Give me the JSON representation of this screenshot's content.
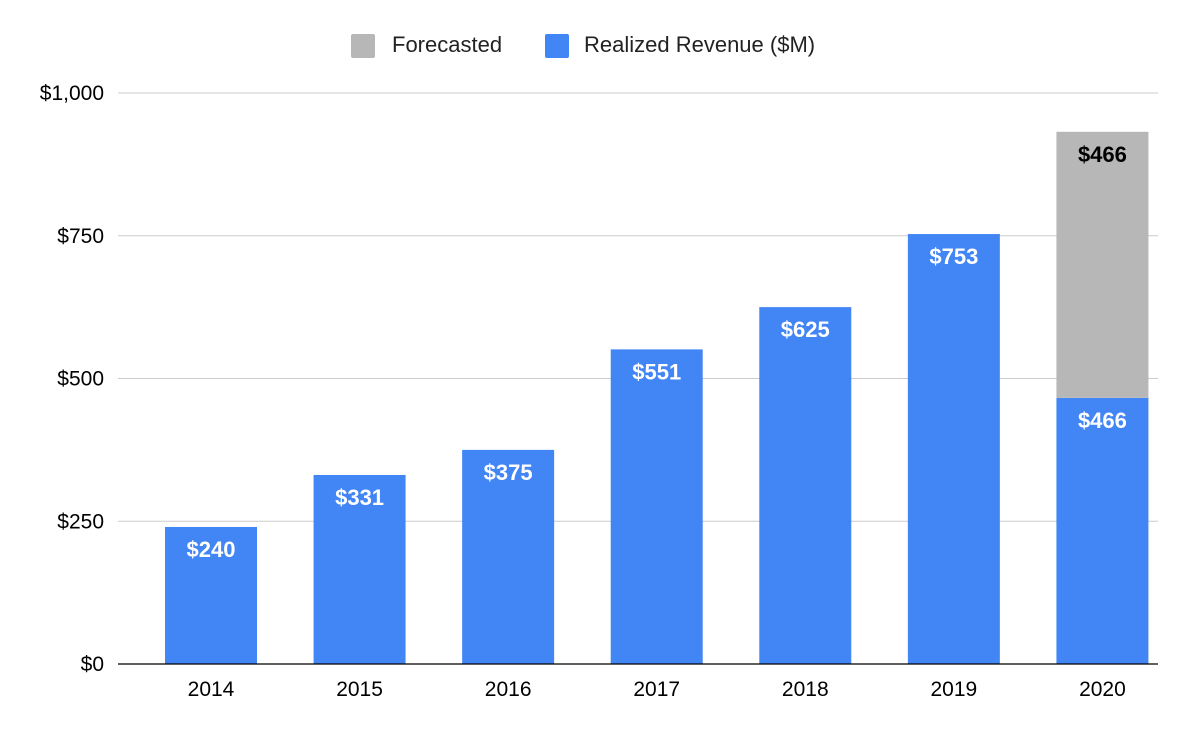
{
  "chart_data": {
    "type": "bar",
    "stacked": true,
    "categories": [
      "2014",
      "2015",
      "2016",
      "2017",
      "2018",
      "2019",
      "2020"
    ],
    "series": [
      {
        "name": "Realized Revenue ($M)",
        "color": "#4285f4",
        "label_color": "#ffffff",
        "values": [
          240,
          331,
          375,
          551,
          625,
          753,
          466
        ]
      },
      {
        "name": "Forecasted",
        "color": "#b7b7b7",
        "label_color": "#000000",
        "values": [
          0,
          0,
          0,
          0,
          0,
          0,
          466
        ]
      }
    ],
    "data_labels": {
      "Realized Revenue ($M)": [
        "$240",
        "$331",
        "$375",
        "$551",
        "$625",
        "$753",
        "$466"
      ],
      "Forecasted": [
        "",
        "",
        "",
        "",
        "",
        "",
        "$466"
      ]
    },
    "legend": {
      "position": "top",
      "entries": [
        "Forecasted",
        "Realized Revenue ($M)"
      ]
    },
    "y_ticks": [
      0,
      250,
      500,
      750,
      1000
    ],
    "y_tick_labels": [
      "$0",
      "$250",
      "$500",
      "$750",
      "$1,000"
    ],
    "ylim": [
      0,
      1000
    ],
    "grid": true,
    "title": "",
    "xlabel": "",
    "ylabel": ""
  }
}
